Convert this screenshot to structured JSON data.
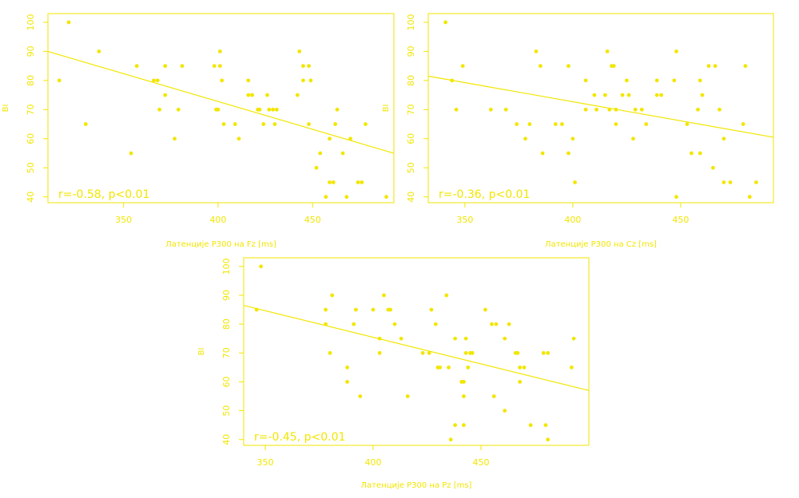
{
  "chart_data": [
    {
      "type": "scatter",
      "xlabel": "Латенције P300 на Fz [ms]",
      "ylabel": "BI",
      "xlim": [
        310,
        493
      ],
      "ylim": [
        38,
        103
      ],
      "xticks": [
        350,
        400,
        450
      ],
      "yticks": [
        40,
        50,
        60,
        70,
        80,
        90,
        100
      ],
      "annotation": "r=-0.58, p<0.01",
      "trendline": {
        "x": [
          310,
          493
        ],
        "y": [
          90,
          55
        ]
      },
      "color": "#f2e600",
      "grid": false,
      "points": [
        [
          316,
          80
        ],
        [
          321,
          100
        ],
        [
          330,
          65
        ],
        [
          337,
          90
        ],
        [
          354,
          55
        ],
        [
          357,
          85
        ],
        [
          366,
          80
        ],
        [
          368,
          80
        ],
        [
          369,
          70
        ],
        [
          372,
          85
        ],
        [
          372,
          75
        ],
        [
          377,
          60
        ],
        [
          379,
          70
        ],
        [
          381,
          85
        ],
        [
          398,
          85
        ],
        [
          399,
          70
        ],
        [
          400,
          70
        ],
        [
          401,
          90
        ],
        [
          401,
          85
        ],
        [
          402,
          80
        ],
        [
          403,
          65
        ],
        [
          409,
          65
        ],
        [
          411,
          60
        ],
        [
          416,
          75
        ],
        [
          416,
          80
        ],
        [
          418,
          75
        ],
        [
          418,
          75
        ],
        [
          421,
          70
        ],
        [
          422,
          70
        ],
        [
          424,
          65
        ],
        [
          426,
          75
        ],
        [
          427,
          70
        ],
        [
          429,
          70
        ],
        [
          430,
          65
        ],
        [
          431,
          70
        ],
        [
          442,
          75
        ],
        [
          443,
          90
        ],
        [
          445,
          85
        ],
        [
          445,
          80
        ],
        [
          448,
          85
        ],
        [
          448,
          65
        ],
        [
          449,
          80
        ],
        [
          452,
          50
        ],
        [
          454,
          55
        ],
        [
          457,
          40
        ],
        [
          459,
          60
        ],
        [
          459,
          45
        ],
        [
          461,
          45
        ],
        [
          462,
          65
        ],
        [
          463,
          70
        ],
        [
          466,
          55
        ],
        [
          468,
          40
        ],
        [
          470,
          60
        ],
        [
          474,
          45
        ],
        [
          476,
          45
        ],
        [
          478,
          65
        ],
        [
          489,
          40
        ]
      ]
    },
    {
      "type": "scatter",
      "xlabel": "Латенције P300 на Cz [ms]",
      "ylabel": "BI",
      "xlim": [
        333,
        493
      ],
      "ylim": [
        38,
        103
      ],
      "xticks": [
        350,
        400,
        450
      ],
      "yticks": [
        40,
        50,
        60,
        70,
        80,
        90,
        100
      ],
      "annotation": "r=-0.36, p<0.01",
      "trendline": {
        "x": [
          333,
          493
        ],
        "y": [
          81.5,
          60.5
        ]
      },
      "color": "#f2e600",
      "grid": false,
      "points": [
        [
          341,
          100
        ],
        [
          344,
          80
        ],
        [
          346,
          70
        ],
        [
          349,
          85
        ],
        [
          362,
          70
        ],
        [
          369,
          70
        ],
        [
          374,
          65
        ],
        [
          378,
          60
        ],
        [
          380,
          65
        ],
        [
          383,
          90
        ],
        [
          385,
          85
        ],
        [
          386,
          55
        ],
        [
          392,
          65
        ],
        [
          395,
          65
        ],
        [
          398,
          85
        ],
        [
          398,
          55
        ],
        [
          400,
          60
        ],
        [
          401,
          45
        ],
        [
          406,
          80
        ],
        [
          406,
          70
        ],
        [
          410,
          75
        ],
        [
          411,
          70
        ],
        [
          415,
          75
        ],
        [
          416,
          90
        ],
        [
          417,
          70
        ],
        [
          418,
          85
        ],
        [
          419,
          85
        ],
        [
          420,
          70
        ],
        [
          420,
          65
        ],
        [
          423,
          75
        ],
        [
          425,
          80
        ],
        [
          426,
          75
        ],
        [
          428,
          60
        ],
        [
          429,
          70
        ],
        [
          432,
          70
        ],
        [
          434,
          65
        ],
        [
          439,
          80
        ],
        [
          439,
          75
        ],
        [
          441,
          75
        ],
        [
          447,
          80
        ],
        [
          448,
          90
        ],
        [
          448,
          40
        ],
        [
          453,
          65
        ],
        [
          455,
          55
        ],
        [
          458,
          70
        ],
        [
          459,
          55
        ],
        [
          459,
          80
        ],
        [
          460,
          75
        ],
        [
          463,
          85
        ],
        [
          465,
          50
        ],
        [
          466,
          85
        ],
        [
          468,
          70
        ],
        [
          470,
          60
        ],
        [
          470,
          45
        ],
        [
          473,
          45
        ],
        [
          479,
          65
        ],
        [
          480,
          85
        ],
        [
          482,
          40
        ],
        [
          485,
          45
        ]
      ]
    },
    {
      "type": "scatter",
      "xlabel": "Латенције P300 на Pz [ms]",
      "ylabel": "BI",
      "xlim": [
        340,
        500
      ],
      "ylim": [
        38,
        103
      ],
      "xticks": [
        350,
        400,
        450
      ],
      "yticks": [
        40,
        50,
        60,
        70,
        80,
        90,
        100
      ],
      "annotation": "r=-0.45, p<0.01",
      "trendline": {
        "x": [
          340,
          500
        ],
        "y": [
          86.5,
          57
        ]
      },
      "color": "#f2e600",
      "grid": false,
      "points": [
        [
          346,
          85
        ],
        [
          348,
          100
        ],
        [
          378,
          85
        ],
        [
          378,
          80
        ],
        [
          380,
          70
        ],
        [
          381,
          90
        ],
        [
          388,
          65
        ],
        [
          388,
          60
        ],
        [
          391,
          80
        ],
        [
          392,
          85
        ],
        [
          394,
          55
        ],
        [
          400,
          85
        ],
        [
          403,
          70
        ],
        [
          403,
          75
        ],
        [
          405,
          90
        ],
        [
          407,
          85
        ],
        [
          408,
          85
        ],
        [
          410,
          80
        ],
        [
          413,
          75
        ],
        [
          416,
          55
        ],
        [
          423,
          70
        ],
        [
          426,
          70
        ],
        [
          427,
          85
        ],
        [
          429,
          80
        ],
        [
          430,
          65
        ],
        [
          431,
          65
        ],
        [
          434,
          90
        ],
        [
          435,
          65
        ],
        [
          436,
          40
        ],
        [
          438,
          75
        ],
        [
          438,
          45
        ],
        [
          441,
          60
        ],
        [
          442,
          60
        ],
        [
          442,
          55
        ],
        [
          442,
          45
        ],
        [
          443,
          75
        ],
        [
          443,
          70
        ],
        [
          444,
          65
        ],
        [
          445,
          70
        ],
        [
          446,
          70
        ],
        [
          452,
          85
        ],
        [
          455,
          80
        ],
        [
          456,
          55
        ],
        [
          457,
          80
        ],
        [
          461,
          75
        ],
        [
          461,
          50
        ],
        [
          463,
          80
        ],
        [
          466,
          70
        ],
        [
          467,
          70
        ],
        [
          468,
          65
        ],
        [
          468,
          60
        ],
        [
          470,
          65
        ],
        [
          473,
          45
        ],
        [
          479,
          70
        ],
        [
          480,
          45
        ],
        [
          481,
          70
        ],
        [
          481,
          40
        ],
        [
          492,
          65
        ],
        [
          493,
          75
        ]
      ]
    }
  ]
}
